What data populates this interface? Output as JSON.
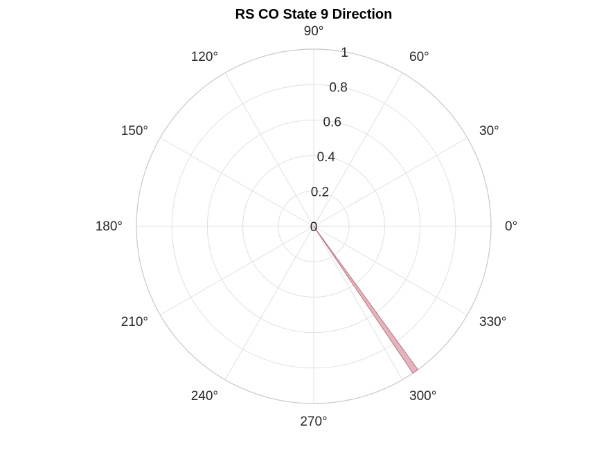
{
  "chart_data": {
    "type": "polar-histogram",
    "title": "RS  CO State 9 Direction",
    "angular_ticks": [
      {
        "deg": 0,
        "label": "0°"
      },
      {
        "deg": 30,
        "label": "30°"
      },
      {
        "deg": 60,
        "label": "60°"
      },
      {
        "deg": 90,
        "label": "90°"
      },
      {
        "deg": 120,
        "label": "120°"
      },
      {
        "deg": 150,
        "label": "150°"
      },
      {
        "deg": 180,
        "label": "180°"
      },
      {
        "deg": 210,
        "label": "210°"
      },
      {
        "deg": 240,
        "label": "240°"
      },
      {
        "deg": 270,
        "label": "270°"
      },
      {
        "deg": 300,
        "label": "300°"
      },
      {
        "deg": 330,
        "label": "330°"
      }
    ],
    "radial_ticks": [
      {
        "value": 0,
        "label": "0"
      },
      {
        "value": 0.2,
        "label": "0.2"
      },
      {
        "value": 0.4,
        "label": "0.4"
      },
      {
        "value": 0.6,
        "label": "0.6"
      },
      {
        "value": 0.8,
        "label": "0.8"
      },
      {
        "value": 1,
        "label": "1"
      }
    ],
    "rlim": [
      0,
      1
    ],
    "grid": true,
    "bars": [
      {
        "theta_start_deg": 304,
        "theta_end_deg": 306,
        "value": 1
      }
    ],
    "bar_fill": "#e2b4bd",
    "bar_edge": "#b0606f",
    "grid_color": "#e0e0e0",
    "frame_color": "#c8c8c8"
  }
}
